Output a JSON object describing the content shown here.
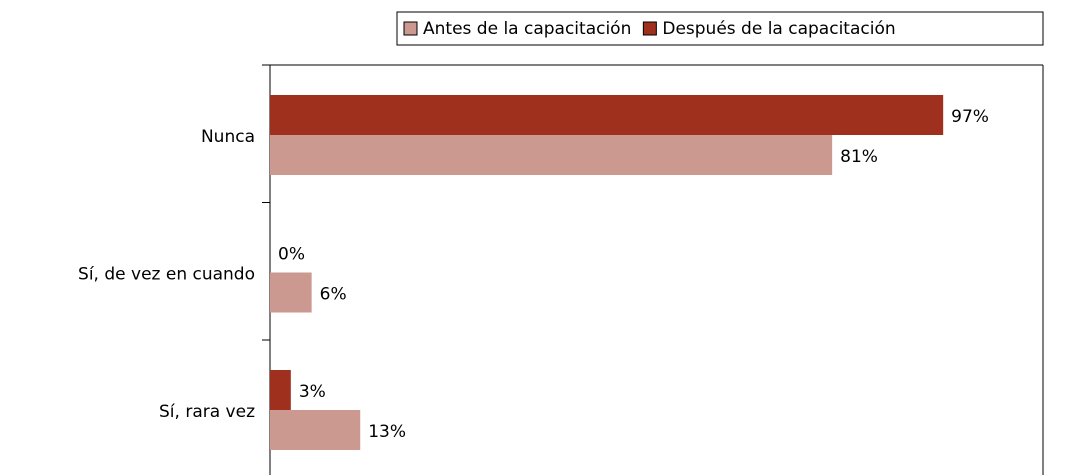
{
  "chart_data": {
    "type": "barh",
    "categories": [
      "Nunca",
      "Sí, de vez en cuando",
      "Sí, rara vez"
    ],
    "series": [
      {
        "name": "Antes de la capacitación",
        "color": "#cc9990",
        "values": [
          81,
          6,
          13
        ],
        "value_labels": [
          "81%",
          "6%",
          "13%"
        ]
      },
      {
        "name": "Después de la capacitación",
        "color": "#a0301e",
        "values": [
          97,
          0,
          3
        ],
        "value_labels": [
          "97%",
          "0%",
          "3%"
        ]
      }
    ],
    "legend": "top-right"
  }
}
